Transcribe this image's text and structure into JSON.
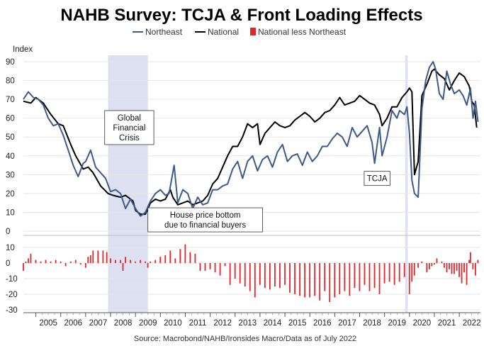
{
  "chart_data": {
    "type": "line",
    "title": "NAHB Survey: TCJA & Front Loading Effects",
    "ylabel": "Index",
    "source": "Source: Macrobond/NAHB/Ironsides Macro/Data as of July 2022",
    "colors": {
      "northeast": "#3d5a89",
      "national": "#000000",
      "diff": "#e0262b",
      "shade": "#dde0f1"
    },
    "legend": [
      "Northeast",
      "National",
      "National less Northeast"
    ],
    "legend_position": "top-center",
    "top_panel": {
      "ylim": [
        0,
        90
      ],
      "yticks": [
        0,
        10,
        20,
        30,
        40,
        50,
        60,
        70,
        80,
        90
      ]
    },
    "bottom_panel": {
      "type": "bar",
      "ylim": [
        -30,
        10
      ],
      "yticks": [
        10,
        0,
        -10,
        -20,
        -30
      ]
    },
    "xlim": [
      2004.5,
      2022.85
    ],
    "year_labels": [
      "2005",
      "2006",
      "2007",
      "2008",
      "2009",
      "2010",
      "2011",
      "2012",
      "2013",
      "2014",
      "2015",
      "2016",
      "2017",
      "2018",
      "2019",
      "2020",
      "2021",
      "2022"
    ],
    "shaded_periods": [
      {
        "start": 2007.9,
        "end": 2009.5
      },
      {
        "start": 2019.83,
        "end": 2019.93
      }
    ],
    "annotations": [
      {
        "lines": [
          "Global",
          "Financial",
          "Crisis"
        ],
        "x": 2008.75,
        "y": 55
      },
      {
        "lines": [
          "House price bottom",
          "due to financial buyers"
        ],
        "x": 2011.8,
        "y": 6
      },
      {
        "lines": [
          "TCJA"
        ],
        "x": 2018.7,
        "y": 28
      }
    ],
    "series": [
      {
        "name": "National",
        "points": [
          [
            2004.5,
            69
          ],
          [
            2004.8,
            68
          ],
          [
            2005.0,
            71
          ],
          [
            2005.3,
            68
          ],
          [
            2005.6,
            62
          ],
          [
            2005.9,
            57
          ],
          [
            2006.1,
            56
          ],
          [
            2006.4,
            46
          ],
          [
            2006.6,
            40
          ],
          [
            2006.9,
            33
          ],
          [
            2007.1,
            34
          ],
          [
            2007.3,
            31
          ],
          [
            2007.6,
            24
          ],
          [
            2007.9,
            20
          ],
          [
            2008.1,
            19
          ],
          [
            2008.4,
            18
          ],
          [
            2008.6,
            19
          ],
          [
            2008.9,
            16
          ],
          [
            2009.0,
            11
          ],
          [
            2009.2,
            9
          ],
          [
            2009.4,
            9
          ],
          [
            2009.6,
            15
          ],
          [
            2009.8,
            17
          ],
          [
            2010.0,
            16
          ],
          [
            2010.2,
            17
          ],
          [
            2010.4,
            22
          ],
          [
            2010.5,
            18
          ],
          [
            2010.7,
            14
          ],
          [
            2010.9,
            15
          ],
          [
            2011.1,
            16
          ],
          [
            2011.3,
            14
          ],
          [
            2011.5,
            15
          ],
          [
            2011.7,
            16
          ],
          [
            2011.9,
            19
          ],
          [
            2012.1,
            25
          ],
          [
            2012.3,
            28
          ],
          [
            2012.5,
            34
          ],
          [
            2012.7,
            40
          ],
          [
            2012.9,
            45
          ],
          [
            2013.1,
            45
          ],
          [
            2013.3,
            50
          ],
          [
            2013.5,
            57
          ],
          [
            2013.7,
            55
          ],
          [
            2013.9,
            57
          ],
          [
            2014.0,
            46
          ],
          [
            2014.2,
            52
          ],
          [
            2014.4,
            55
          ],
          [
            2014.6,
            58
          ],
          [
            2014.8,
            56
          ],
          [
            2015.0,
            55
          ],
          [
            2015.2,
            56
          ],
          [
            2015.4,
            59
          ],
          [
            2015.6,
            61
          ],
          [
            2015.8,
            63
          ],
          [
            2016.0,
            61
          ],
          [
            2016.2,
            58
          ],
          [
            2016.4,
            60
          ],
          [
            2016.6,
            63
          ],
          [
            2016.8,
            64
          ],
          [
            2017.0,
            67
          ],
          [
            2017.2,
            71
          ],
          [
            2017.4,
            67
          ],
          [
            2017.6,
            68
          ],
          [
            2017.8,
            69
          ],
          [
            2018.0,
            72
          ],
          [
            2018.2,
            70
          ],
          [
            2018.4,
            68
          ],
          [
            2018.6,
            67
          ],
          [
            2018.8,
            62
          ],
          [
            2018.9,
            56
          ],
          [
            2019.1,
            60
          ],
          [
            2019.3,
            66
          ],
          [
            2019.5,
            66
          ],
          [
            2019.7,
            71
          ],
          [
            2019.9,
            74
          ],
          [
            2020.0,
            76
          ],
          [
            2020.1,
            74
          ],
          [
            2020.2,
            30
          ],
          [
            2020.35,
            37
          ],
          [
            2020.5,
            72
          ],
          [
            2020.7,
            78
          ],
          [
            2020.9,
            85
          ],
          [
            2021.0,
            86
          ],
          [
            2021.2,
            83
          ],
          [
            2021.4,
            81
          ],
          [
            2021.6,
            75
          ],
          [
            2021.8,
            80
          ],
          [
            2022.0,
            84
          ],
          [
            2022.2,
            82
          ],
          [
            2022.4,
            77
          ],
          [
            2022.5,
            69
          ],
          [
            2022.6,
            67
          ],
          [
            2022.7,
            55
          ]
        ]
      },
      {
        "name": "Northeast",
        "points": [
          [
            2004.5,
            70
          ],
          [
            2004.7,
            74
          ],
          [
            2004.9,
            71
          ],
          [
            2005.1,
            70
          ],
          [
            2005.3,
            67
          ],
          [
            2005.5,
            60
          ],
          [
            2005.7,
            56
          ],
          [
            2005.9,
            57
          ],
          [
            2006.1,
            51
          ],
          [
            2006.3,
            43
          ],
          [
            2006.5,
            35
          ],
          [
            2006.7,
            29
          ],
          [
            2006.9,
            36
          ],
          [
            2007.0,
            37
          ],
          [
            2007.2,
            43
          ],
          [
            2007.4,
            34
          ],
          [
            2007.6,
            31
          ],
          [
            2007.8,
            28
          ],
          [
            2008.0,
            21
          ],
          [
            2008.2,
            22
          ],
          [
            2008.4,
            20
          ],
          [
            2008.6,
            12
          ],
          [
            2008.8,
            17
          ],
          [
            2009.0,
            12
          ],
          [
            2009.2,
            8
          ],
          [
            2009.4,
            10
          ],
          [
            2009.6,
            16
          ],
          [
            2009.8,
            20
          ],
          [
            2010.0,
            22
          ],
          [
            2010.2,
            19
          ],
          [
            2010.35,
            20
          ],
          [
            2010.55,
            35
          ],
          [
            2010.7,
            15
          ],
          [
            2010.9,
            22
          ],
          [
            2011.1,
            20
          ],
          [
            2011.3,
            12
          ],
          [
            2011.5,
            18
          ],
          [
            2011.7,
            14
          ],
          [
            2011.9,
            15
          ],
          [
            2012.1,
            22
          ],
          [
            2012.3,
            22
          ],
          [
            2012.5,
            24
          ],
          [
            2012.7,
            25
          ],
          [
            2012.9,
            33
          ],
          [
            2013.1,
            37
          ],
          [
            2013.3,
            28
          ],
          [
            2013.5,
            37
          ],
          [
            2013.7,
            40
          ],
          [
            2013.9,
            32
          ],
          [
            2014.1,
            38
          ],
          [
            2014.3,
            40
          ],
          [
            2014.5,
            34
          ],
          [
            2014.7,
            42
          ],
          [
            2014.9,
            46
          ],
          [
            2015.1,
            37
          ],
          [
            2015.3,
            40
          ],
          [
            2015.5,
            41
          ],
          [
            2015.7,
            35
          ],
          [
            2015.9,
            42
          ],
          [
            2016.1,
            37
          ],
          [
            2016.3,
            40
          ],
          [
            2016.5,
            45
          ],
          [
            2016.7,
            45
          ],
          [
            2016.9,
            49
          ],
          [
            2017.1,
            52
          ],
          [
            2017.3,
            50
          ],
          [
            2017.5,
            45
          ],
          [
            2017.7,
            55
          ],
          [
            2017.9,
            50
          ],
          [
            2018.1,
            53
          ],
          [
            2018.3,
            56
          ],
          [
            2018.5,
            47
          ],
          [
            2018.6,
            36
          ],
          [
            2018.8,
            55
          ],
          [
            2018.9,
            40
          ],
          [
            2019.1,
            50
          ],
          [
            2019.3,
            64
          ],
          [
            2019.5,
            60
          ],
          [
            2019.6,
            64
          ],
          [
            2019.8,
            62
          ],
          [
            2019.9,
            66
          ],
          [
            2020.0,
            52
          ],
          [
            2020.1,
            27
          ],
          [
            2020.2,
            20
          ],
          [
            2020.35,
            18
          ],
          [
            2020.5,
            65
          ],
          [
            2020.65,
            80
          ],
          [
            2020.8,
            87
          ],
          [
            2020.95,
            90
          ],
          [
            2021.05,
            86
          ],
          [
            2021.2,
            73
          ],
          [
            2021.35,
            70
          ],
          [
            2021.5,
            85
          ],
          [
            2021.65,
            78
          ],
          [
            2021.8,
            73
          ],
          [
            2022.0,
            75
          ],
          [
            2022.15,
            72
          ],
          [
            2022.3,
            67
          ],
          [
            2022.45,
            76
          ],
          [
            2022.55,
            60
          ],
          [
            2022.65,
            69
          ],
          [
            2022.75,
            58
          ]
        ]
      }
    ],
    "bar_points": [
      [
        2004.5,
        -5
      ],
      [
        2004.6,
        1
      ],
      [
        2004.7,
        3
      ],
      [
        2004.8,
        6
      ],
      [
        2005.0,
        2
      ],
      [
        2005.2,
        1
      ],
      [
        2005.4,
        2
      ],
      [
        2005.6,
        1
      ],
      [
        2005.8,
        2
      ],
      [
        2006.0,
        1
      ],
      [
        2006.2,
        -2
      ],
      [
        2006.4,
        1
      ],
      [
        2006.6,
        2
      ],
      [
        2006.8,
        -1
      ],
      [
        2007.0,
        -3
      ],
      [
        2007.1,
        4
      ],
      [
        2007.2,
        5
      ],
      [
        2007.3,
        8
      ],
      [
        2007.5,
        8
      ],
      [
        2007.7,
        8
      ],
      [
        2007.85,
        7
      ],
      [
        2008.0,
        3
      ],
      [
        2008.2,
        2
      ],
      [
        2008.4,
        2
      ],
      [
        2008.5,
        -5
      ],
      [
        2008.6,
        4
      ],
      [
        2008.8,
        2
      ],
      [
        2009.0,
        1
      ],
      [
        2009.2,
        2
      ],
      [
        2009.4,
        1
      ],
      [
        2009.5,
        -3
      ],
      [
        2009.6,
        1
      ],
      [
        2009.8,
        2
      ],
      [
        2010.0,
        4
      ],
      [
        2010.2,
        5
      ],
      [
        2010.4,
        8
      ],
      [
        2010.6,
        3
      ],
      [
        2010.8,
        9
      ],
      [
        2011.0,
        12
      ],
      [
        2011.2,
        7
      ],
      [
        2011.4,
        6
      ],
      [
        2011.6,
        -5
      ],
      [
        2011.8,
        -5
      ],
      [
        2012.0,
        -4
      ],
      [
        2012.2,
        -6
      ],
      [
        2012.4,
        -8
      ],
      [
        2012.6,
        -2
      ],
      [
        2012.8,
        -14
      ],
      [
        2013.0,
        -10
      ],
      [
        2013.2,
        -13
      ],
      [
        2013.4,
        -15
      ],
      [
        2013.6,
        -18
      ],
      [
        2013.8,
        -22
      ],
      [
        2014.0,
        -14
      ],
      [
        2014.2,
        -16
      ],
      [
        2014.4,
        -17
      ],
      [
        2014.6,
        -15
      ],
      [
        2014.8,
        -16
      ],
      [
        2015.0,
        -14
      ],
      [
        2015.2,
        -19
      ],
      [
        2015.4,
        -20
      ],
      [
        2015.6,
        -21
      ],
      [
        2015.8,
        -22
      ],
      [
        2016.0,
        -22
      ],
      [
        2016.2,
        -21
      ],
      [
        2016.4,
        -24
      ],
      [
        2016.6,
        -18
      ],
      [
        2016.8,
        -25
      ],
      [
        2017.0,
        -22
      ],
      [
        2017.2,
        -20
      ],
      [
        2017.4,
        -18
      ],
      [
        2017.6,
        -21
      ],
      [
        2017.8,
        -16
      ],
      [
        2018.0,
        -18
      ],
      [
        2018.2,
        -14
      ],
      [
        2018.4,
        -18
      ],
      [
        2018.6,
        -16
      ],
      [
        2018.8,
        -20
      ],
      [
        2019.0,
        -13
      ],
      [
        2019.2,
        -12
      ],
      [
        2019.4,
        -14
      ],
      [
        2019.6,
        -12
      ],
      [
        2019.8,
        -9
      ],
      [
        2020.0,
        -20
      ],
      [
        2020.1,
        -12
      ],
      [
        2020.2,
        -8
      ],
      [
        2020.35,
        -3
      ],
      [
        2020.5,
        1
      ],
      [
        2020.7,
        -6
      ],
      [
        2020.8,
        -4
      ],
      [
        2020.9,
        -2
      ],
      [
        2021.0,
        -1
      ],
      [
        2021.1,
        3
      ],
      [
        2021.3,
        1
      ],
      [
        2021.4,
        -3
      ],
      [
        2021.5,
        -6
      ],
      [
        2021.6,
        -4
      ],
      [
        2021.7,
        -7
      ],
      [
        2021.8,
        -7
      ],
      [
        2021.9,
        -5
      ],
      [
        2022.0,
        -9
      ],
      [
        2022.1,
        -13
      ],
      [
        2022.2,
        -6
      ],
      [
        2022.3,
        -14
      ],
      [
        2022.4,
        2
      ],
      [
        2022.45,
        7
      ],
      [
        2022.55,
        -4
      ],
      [
        2022.65,
        -8
      ],
      [
        2022.75,
        2
      ]
    ]
  }
}
